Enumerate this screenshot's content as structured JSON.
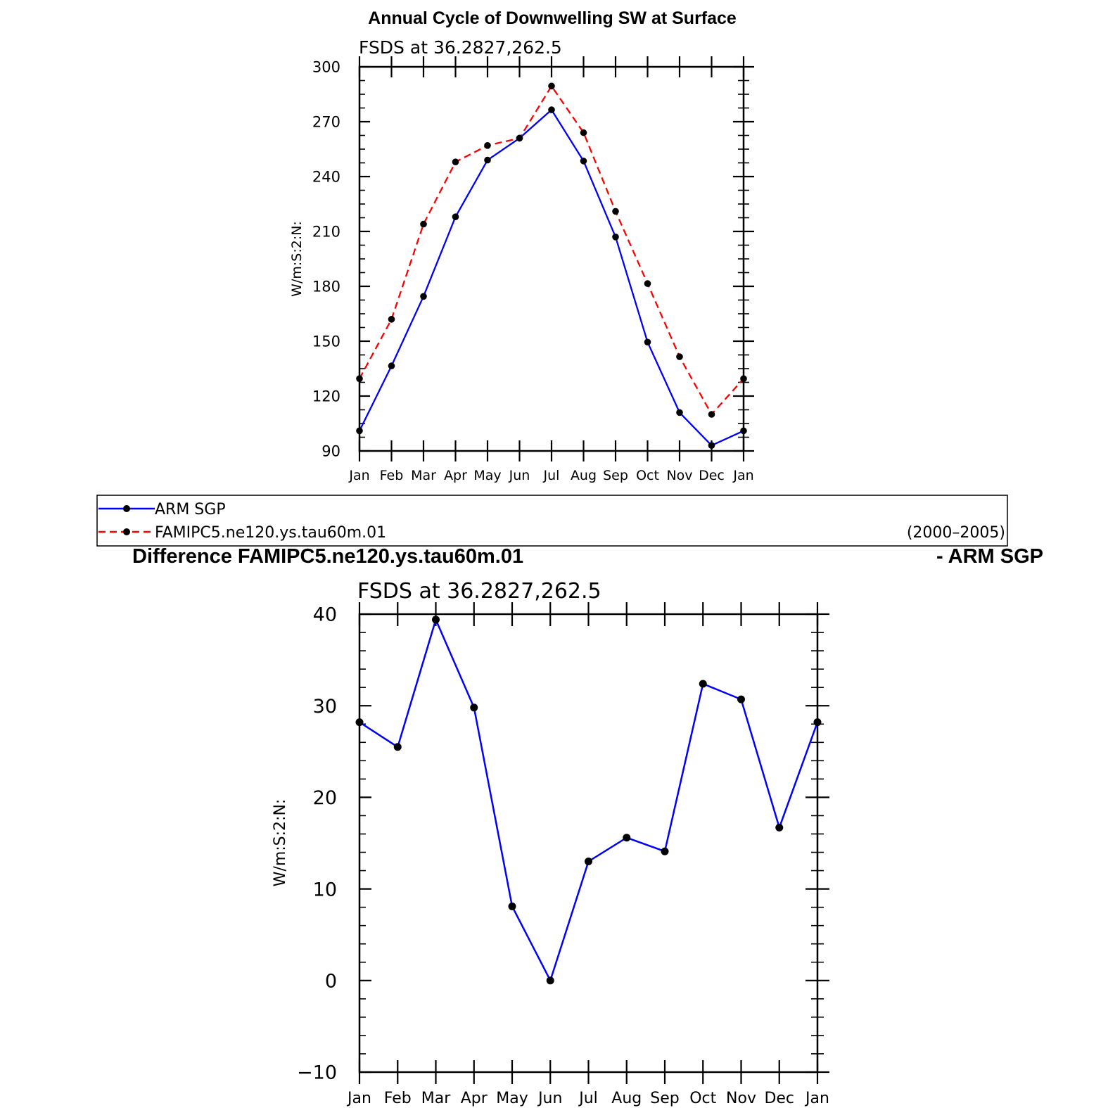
{
  "chart_data": [
    {
      "type": "line",
      "title": "Annual Cycle of Downwelling SW at Surface",
      "subtitle": "FSDS at 36.2827,262.5",
      "ylabel": "W/m:S:2:N:",
      "xlabel": "",
      "categories": [
        "Jan",
        "Feb",
        "Mar",
        "Apr",
        "May",
        "Jun",
        "Jul",
        "Aug",
        "Sep",
        "Oct",
        "Nov",
        "Dec",
        "Jan"
      ],
      "ylim": [
        90,
        300
      ],
      "yticks": [
        "90",
        "120",
        "150",
        "180",
        "210",
        "240",
        "270",
        "300"
      ],
      "series": [
        {
          "name": "ARM SGP",
          "color": "#0000ff",
          "dash": "solid",
          "values": [
            101,
            136.5,
            174.5,
            218,
            249,
            261,
            276.5,
            248.5,
            207,
            149.5,
            111,
            93,
            101
          ]
        },
        {
          "name": "FAMIPC5.ne120.ys.tau60m.01",
          "color": "#ff0000",
          "dash": "dashed",
          "values": [
            129.5,
            162,
            214,
            248,
            257,
            261,
            289.5,
            264,
            221,
            181.5,
            141.5,
            110,
            129.5
          ]
        }
      ],
      "legend": {
        "placement": "bottom",
        "period": "(2000–2005)"
      }
    },
    {
      "type": "line",
      "title": "Difference FAMIPC5.ne120.ys.tau60m.01",
      "title_right": "- ARM SGP",
      "subtitle": "FSDS at 36.2827,262.5",
      "ylabel": "W/m:S:2:N:",
      "xlabel": "",
      "categories": [
        "Jan",
        "Feb",
        "Mar",
        "Apr",
        "May",
        "Jun",
        "Jul",
        "Aug",
        "Sep",
        "Oct",
        "Nov",
        "Dec",
        "Jan"
      ],
      "ylim": [
        -10,
        40
      ],
      "yticks": [
        "−10",
        "0",
        "10",
        "20",
        "30",
        "40"
      ],
      "series": [
        {
          "color": "#0000ff",
          "dash": "solid",
          "values": [
            28.2,
            25.5,
            39.4,
            29.8,
            8.1,
            0,
            13,
            15.6,
            14.1,
            32.4,
            30.7,
            16.7,
            28.2
          ]
        }
      ]
    }
  ]
}
